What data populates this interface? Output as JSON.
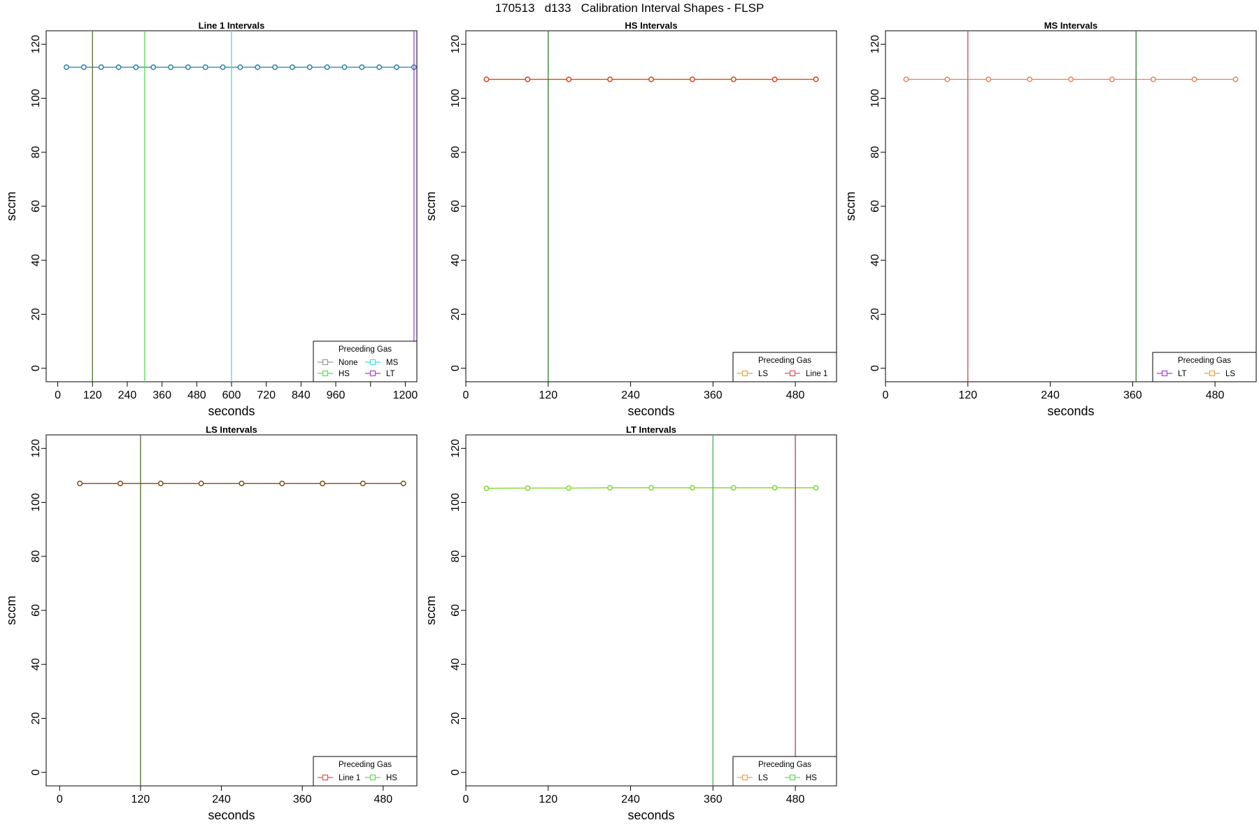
{
  "page": {
    "title": "170513   d133   Calibration Interval Shapes - FLSP"
  },
  "chart_data": [
    {
      "type": "line",
      "title": "Line 1 Intervals",
      "xlabel": "seconds",
      "ylabel": "sccm",
      "xlim": [
        -40,
        1240
      ],
      "ylim": [
        -5,
        125
      ],
      "xticks": [
        0,
        120,
        240,
        360,
        480,
        600,
        720,
        840,
        960,
        1080,
        1200
      ],
      "xticklabels": [
        "0",
        "120",
        "240",
        "360",
        "480",
        "600",
        "720",
        "840",
        "960",
        "",
        "1200"
      ],
      "yticks": [
        0,
        20,
        40,
        60,
        80,
        100,
        120
      ],
      "grid": false,
      "series": [
        {
          "color": "#1f7fa8",
          "marker": "circle",
          "x": [
            30,
            90,
            150,
            210,
            270,
            330,
            390,
            450,
            510,
            570,
            630,
            690,
            750,
            810,
            870,
            930,
            990,
            1050,
            1110,
            1170,
            1230
          ],
          "y": [
            111.5,
            111.5,
            111.5,
            111.5,
            111.5,
            111.5,
            111.5,
            111.5,
            111.5,
            111.5,
            111.5,
            111.5,
            111.5,
            111.5,
            111.5,
            111.5,
            111.5,
            111.5,
            111.5,
            111.5,
            111.5
          ]
        }
      ],
      "vlines": [
        {
          "x": 120,
          "color": "#556b2f"
        },
        {
          "x": 300,
          "color": "#55e055"
        },
        {
          "x": 600,
          "color": "#40e0d8"
        },
        {
          "x": 1230,
          "color": "#a040e0"
        }
      ],
      "legend": {
        "title": "Preceding Gas",
        "placement": "bottom-right",
        "columns": 2,
        "entries": [
          {
            "label": "None",
            "color": "#999999"
          },
          {
            "label": "MS",
            "color": "#40e0d8"
          },
          {
            "label": "HS",
            "color": "#55e055"
          },
          {
            "label": "LT",
            "color": "#a040e0"
          }
        ]
      }
    },
    {
      "type": "line",
      "title": "HS Intervals",
      "xlabel": "seconds",
      "ylabel": "sccm",
      "xlim": [
        0,
        540
      ],
      "ylim": [
        -5,
        125
      ],
      "xticks": [
        0,
        120,
        240,
        360,
        480
      ],
      "xticklabels": [
        "0",
        "120",
        "240",
        "360",
        "480"
      ],
      "yticks": [
        0,
        20,
        40,
        60,
        80,
        100,
        120
      ],
      "grid": false,
      "series": [
        {
          "color": "#f0a040",
          "marker": "circle",
          "x": [
            30,
            90,
            150,
            210,
            270,
            330,
            390,
            450,
            510
          ],
          "y": [
            107,
            107,
            107,
            107,
            107,
            107,
            107,
            107,
            107
          ]
        },
        {
          "color": "#e0401e",
          "marker": "circle",
          "x": [
            30,
            90,
            150,
            210,
            270,
            330,
            390,
            450,
            510
          ],
          "y": [
            107,
            107,
            107,
            107,
            107,
            107,
            107,
            107,
            107
          ]
        }
      ],
      "vlines": [
        {
          "x": 120,
          "color": "#2d7a2d"
        }
      ],
      "legend": {
        "title": "Preceding Gas",
        "placement": "bottom-right",
        "columns": 2,
        "entries": [
          {
            "label": "LS",
            "color": "#f0a040"
          },
          {
            "label": "Line 1",
            "color": "#e05050"
          }
        ]
      }
    },
    {
      "type": "line",
      "title": "MS Intervals",
      "xlabel": "seconds",
      "ylabel": "sccm",
      "xlim": [
        0,
        540
      ],
      "ylim": [
        -5,
        125
      ],
      "xticks": [
        0,
        120,
        240,
        360,
        480
      ],
      "xticklabels": [
        "0",
        "120",
        "240",
        "360",
        "480"
      ],
      "yticks": [
        0,
        20,
        40,
        60,
        80,
        100,
        120
      ],
      "grid": false,
      "series": [
        {
          "color": "#e88050",
          "marker": "circle",
          "x": [
            30,
            90,
            150,
            210,
            270,
            330,
            390,
            450,
            510
          ],
          "y": [
            107,
            107,
            107,
            107,
            107,
            107,
            107,
            107,
            107
          ]
        }
      ],
      "vlines": [
        {
          "x": 120,
          "color": "#c05050"
        },
        {
          "x": 365,
          "color": "#2d7a2d"
        }
      ],
      "legend": {
        "title": "Preceding Gas",
        "placement": "bottom-right",
        "columns": 2,
        "entries": [
          {
            "label": "LT",
            "color": "#a040e0"
          },
          {
            "label": "LS",
            "color": "#f0a040"
          }
        ]
      }
    },
    {
      "type": "line",
      "title": "LS Intervals",
      "xlabel": "seconds",
      "ylabel": "sccm",
      "xlim": [
        -20,
        530
      ],
      "ylim": [
        -5,
        125
      ],
      "xticks": [
        0,
        120,
        240,
        360,
        480
      ],
      "xticklabels": [
        "0",
        "120",
        "240",
        "360",
        "480"
      ],
      "yticks": [
        0,
        20,
        40,
        60,
        80,
        100,
        120
      ],
      "grid": false,
      "series": [
        {
          "color": "#c85a1e",
          "marker": "circle",
          "x": [
            30,
            90,
            150,
            210,
            270,
            330,
            390,
            450,
            510
          ],
          "y": [
            107,
            107,
            107,
            107,
            107,
            107,
            107,
            107,
            107
          ]
        },
        {
          "color": "#7a5010",
          "marker": "circle",
          "x": [
            30,
            90,
            150,
            210,
            270,
            330,
            390,
            450,
            510
          ],
          "y": [
            107,
            107,
            107,
            107,
            107,
            107,
            107,
            107,
            107
          ]
        }
      ],
      "vlines": [
        {
          "x": 120,
          "color": "#556b2f"
        }
      ],
      "legend": {
        "title": "Preceding Gas",
        "placement": "bottom-right",
        "columns": 2,
        "entries": [
          {
            "label": "Line 1",
            "color": "#e05050"
          },
          {
            "label": "HS",
            "color": "#55e055"
          }
        ]
      }
    },
    {
      "type": "line",
      "title": "LT Intervals",
      "xlabel": "seconds",
      "ylabel": "sccm",
      "xlim": [
        0,
        540
      ],
      "ylim": [
        -5,
        125
      ],
      "xticks": [
        0,
        120,
        240,
        360,
        480
      ],
      "xticklabels": [
        "0",
        "120",
        "240",
        "360",
        "480"
      ],
      "yticks": [
        0,
        20,
        40,
        60,
        80,
        100,
        120
      ],
      "grid": false,
      "series": [
        {
          "color": "#80d830",
          "marker": "circle",
          "x": [
            30,
            90,
            150,
            210,
            270,
            330,
            390,
            450,
            510
          ],
          "y": [
            105.2,
            105.3,
            105.3,
            105.4,
            105.4,
            105.4,
            105.4,
            105.4,
            105.4
          ]
        }
      ],
      "vlines": [
        {
          "x": 360,
          "color": "#4caf50"
        },
        {
          "x": 480,
          "color": "#a04050"
        }
      ],
      "legend": {
        "title": "Preceding Gas",
        "placement": "bottom-right",
        "columns": 2,
        "entries": [
          {
            "label": "LS",
            "color": "#f0a040"
          },
          {
            "label": "HS",
            "color": "#55e055"
          }
        ]
      }
    }
  ]
}
